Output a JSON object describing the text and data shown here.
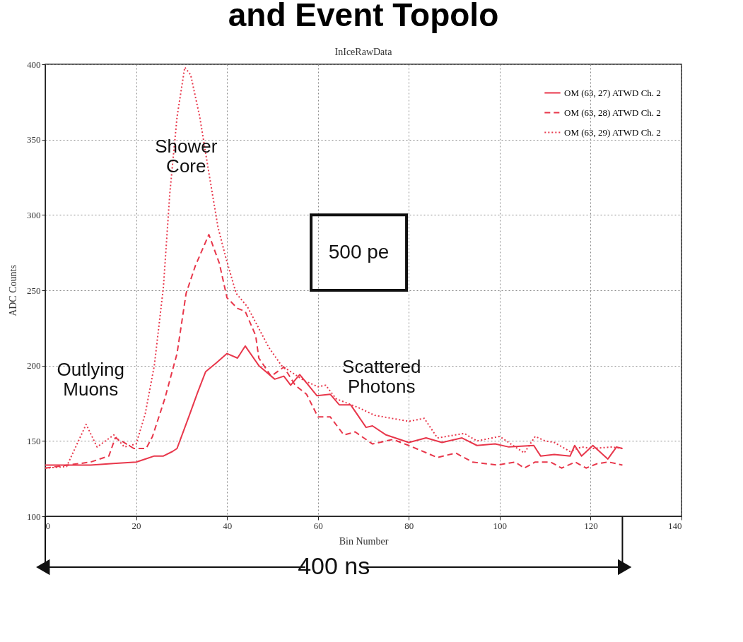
{
  "chart_data": {
    "type": "line",
    "title": "InIceRawData",
    "xlabel": "Bin Number",
    "ylabel": "ADC Counts",
    "xlim": [
      0,
      140
    ],
    "ylim": [
      100,
      400
    ],
    "xticks": [
      0,
      20,
      40,
      60,
      80,
      100,
      120,
      140
    ],
    "yticks": [
      100,
      150,
      200,
      250,
      300,
      350,
      400
    ],
    "grid": true,
    "legend": "top right",
    "marker": "none",
    "annotations": [
      "and Event Topolo",
      "Shower\nCore",
      "Outlying\nMuons",
      "Scattered\nPhotons",
      "500 pe",
      "400 ns"
    ],
    "series": [
      {
        "name": "OM (63, 27) ATWD Ch. 2",
        "color": "#e8374b",
        "line_style": "solid",
        "x": [
          0,
          5,
          10,
          15,
          20,
          22,
          24,
          26,
          28,
          29,
          31.7,
          33.5,
          35.3,
          37.7,
          40,
          42.3,
          44,
          47,
          50.5,
          52.5,
          54,
          56,
          59.8,
          62.7,
          64.7,
          67.2,
          70.6,
          72,
          75,
          80,
          83.8,
          87.3,
          91.7,
          95,
          99,
          102,
          107.5,
          109,
          112,
          115.5,
          116.5,
          118,
          120.5,
          123.8,
          125.7,
          127
        ],
        "values": [
          134,
          134,
          134,
          135,
          136,
          138,
          140,
          140,
          143,
          145,
          167,
          182,
          196,
          202,
          208,
          205,
          213,
          200,
          191,
          193,
          187,
          194,
          180,
          181,
          174,
          174,
          159,
          160,
          154,
          149,
          152,
          149,
          152,
          147,
          148,
          146,
          147,
          140,
          141,
          140,
          147,
          140,
          147,
          138,
          146,
          145
        ]
      },
      {
        "name": "OM (63, 28) ATWD Ch. 2",
        "color": "#e8374b",
        "line_style": "dashed",
        "x": [
          0,
          5,
          10,
          14,
          15.4,
          16.8,
          19.5,
          22.2,
          23.6,
          26.3,
          29,
          31,
          33,
          36,
          38.3,
          40,
          42.3,
          44,
          46.3,
          47,
          49.7,
          52.5,
          55,
          57.5,
          60,
          62.7,
          65.7,
          68.2,
          72,
          76.5,
          80,
          86.3,
          90.3,
          94,
          99.5,
          103.4,
          105.4,
          107.8,
          111.2,
          113.6,
          116.6,
          119,
          121.5,
          124,
          127
        ],
        "values": [
          132,
          134,
          136,
          140,
          152,
          150,
          145,
          145,
          153,
          178,
          208,
          248,
          266,
          287,
          268,
          245,
          238,
          236,
          220,
          205,
          193,
          199,
          187,
          181,
          166,
          166,
          154,
          156,
          148,
          151,
          147,
          139,
          142,
          136,
          134,
          136,
          132,
          136,
          136,
          132,
          136,
          132,
          135,
          136,
          134
        ]
      },
      {
        "name": "OM (63, 29) ATWD Ch. 2",
        "color": "#e8374b",
        "line_style": "dotted",
        "x": [
          0,
          4.7,
          9,
          11.4,
          15.1,
          17.4,
          20,
          22,
          24,
          26,
          27.4,
          29,
          30.7,
          32,
          34,
          36,
          38,
          39.7,
          42,
          44.5,
          49.2,
          52,
          57,
          60,
          61.7,
          64,
          69,
          72.5,
          80,
          83.4,
          86.3,
          92.2,
          95,
          100,
          105.4,
          107.8,
          110,
          112,
          115.5,
          118,
          120.5,
          124.6,
          127
        ],
        "values": [
          132,
          133,
          161,
          146,
          154,
          146,
          148,
          168,
          200,
          252,
          314,
          365,
          398,
          393,
          365,
          328,
          292,
          272,
          248,
          239,
          212,
          200,
          190,
          186,
          187,
          178,
          172,
          167,
          163,
          165,
          152,
          155,
          150,
          153,
          142,
          153,
          150,
          149,
          143,
          146,
          145,
          146,
          145
        ]
      }
    ]
  }
}
